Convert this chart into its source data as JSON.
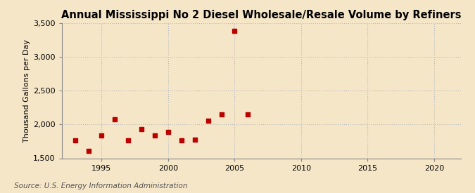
{
  "title": "Annual Mississippi No 2 Diesel Wholesale/Resale Volume by Refiners",
  "ylabel": "Thousand Gallons per Day",
  "source": "Source: U.S. Energy Information Administration",
  "background_color": "#f5e6c8",
  "years": [
    1993,
    1994,
    1995,
    1996,
    1997,
    1998,
    1999,
    2000,
    2001,
    2002,
    2003,
    2004,
    2005,
    2006
  ],
  "values": [
    1760,
    1610,
    1840,
    2080,
    1760,
    1930,
    1840,
    1890,
    1770,
    1780,
    2060,
    2150,
    3390,
    2150
  ],
  "marker_color": "#bb0000",
  "xlim": [
    1992,
    2022
  ],
  "ylim": [
    1500,
    3500
  ],
  "yticks": [
    1500,
    2000,
    2500,
    3000,
    3500
  ],
  "xticks": [
    1995,
    2000,
    2005,
    2010,
    2015,
    2020
  ],
  "title_fontsize": 10.5,
  "axis_label_fontsize": 8,
  "tick_fontsize": 8,
  "source_fontsize": 7.5,
  "grid_color": "#bbbbbb",
  "marker_size": 5
}
